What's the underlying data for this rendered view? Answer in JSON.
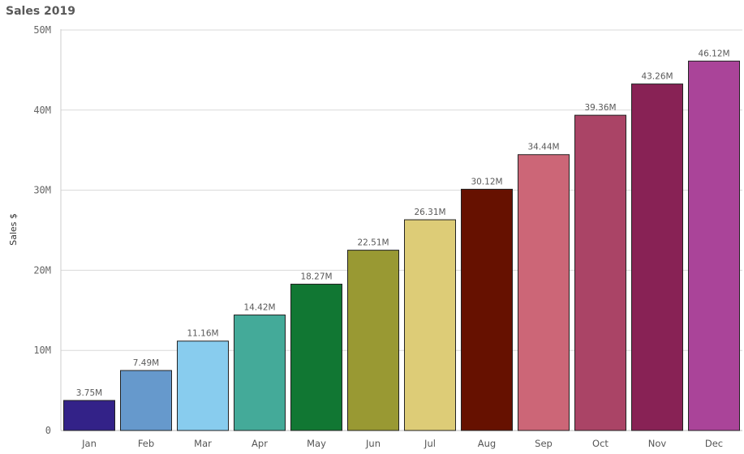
{
  "chart_data": {
    "type": "bar",
    "title": "Sales 2019",
    "xlabel": "",
    "ylabel": "Sales $",
    "ylim": [
      0,
      50000000
    ],
    "yticks": [
      {
        "value": 0,
        "label": "0"
      },
      {
        "value": 10000000,
        "label": "10M"
      },
      {
        "value": 20000000,
        "label": "20M"
      },
      {
        "value": 30000000,
        "label": "30M"
      },
      {
        "value": 40000000,
        "label": "40M"
      },
      {
        "value": 50000000,
        "label": "50M"
      }
    ],
    "grid": true,
    "legend": "none",
    "categories": [
      "Jan",
      "Feb",
      "Mar",
      "Apr",
      "May",
      "Jun",
      "Jul",
      "Aug",
      "Sep",
      "Oct",
      "Nov",
      "Dec"
    ],
    "values": [
      3750000,
      7490000,
      11160000,
      14420000,
      18270000,
      22510000,
      26310000,
      30120000,
      34440000,
      39360000,
      43260000,
      46120000
    ],
    "data_labels": [
      "3.75M",
      "7.49M",
      "11.16M",
      "14.42M",
      "18.27M",
      "22.51M",
      "26.31M",
      "30.12M",
      "34.44M",
      "39.36M",
      "43.26M",
      "46.12M"
    ],
    "colors": [
      "#332288",
      "#6699cc",
      "#88ccee",
      "#44aa99",
      "#117733",
      "#999933",
      "#ddcc77",
      "#661100",
      "#cc6677",
      "#aa4466",
      "#882255",
      "#aa4499"
    ]
  }
}
